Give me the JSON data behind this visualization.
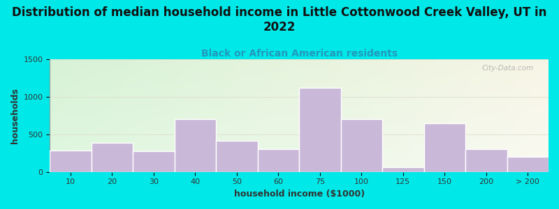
{
  "title": "Distribution of median household income in Little Cottonwood Creek Valley, UT in\n2022",
  "subtitle": "Black or African American residents",
  "xlabel": "household income ($1000)",
  "ylabel": "households",
  "bar_labels": [
    "10",
    "20",
    "30",
    "40",
    "50",
    "60",
    "75",
    "100",
    "125",
    "150",
    "200",
    "> 200"
  ],
  "bar_values": [
    290,
    390,
    280,
    700,
    420,
    305,
    1120,
    700,
    60,
    650,
    300,
    200
  ],
  "bar_color": "#c9b8d8",
  "bar_edge_color": "#ffffff",
  "ylim": [
    0,
    1500
  ],
  "yticks": [
    0,
    500,
    1000,
    1500
  ],
  "background_outer": "#00e8e8",
  "title_fontsize": 12,
  "subtitle_fontsize": 10,
  "subtitle_color": "#2299bb",
  "axis_label_fontsize": 9,
  "tick_fontsize": 8,
  "watermark": "City-Data.com",
  "watermark_color": "#aaaaaa",
  "grad_topleft": [
    0.84,
    0.95,
    0.84
  ],
  "grad_topright": [
    0.97,
    0.96,
    0.9
  ],
  "grad_bottomleft": [
    0.88,
    0.97,
    0.88
  ],
  "grad_bottomright": [
    0.98,
    0.98,
    0.95
  ]
}
